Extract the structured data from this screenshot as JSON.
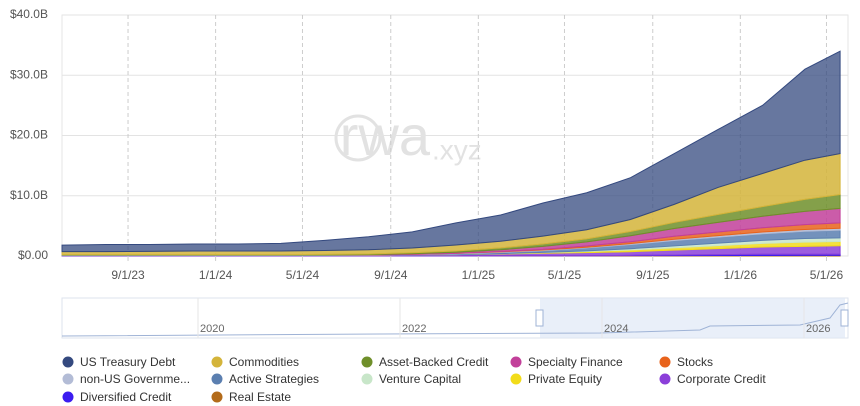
{
  "chart_data": {
    "type": "stacked-area",
    "watermark": [
      "rwa",
      ".xyz"
    ],
    "x": [
      "2023-06-01",
      "2023-08-01",
      "2023-10-01",
      "2023-12-01",
      "2024-02-01",
      "2024-04-01",
      "2024-06-01",
      "2024-08-01",
      "2024-10-01",
      "2024-12-01",
      "2025-02-01",
      "2025-04-01",
      "2025-06-01",
      "2025-08-01",
      "2025-10-01",
      "2025-12-01",
      "2026-02-01",
      "2026-04-01",
      "2026-05-20"
    ],
    "xlim": [
      "2023-06-01",
      "2026-05-31"
    ],
    "xticks": [
      {
        "value": "2023-09-01",
        "label": "9/1/23"
      },
      {
        "value": "2024-01-01",
        "label": "1/1/24"
      },
      {
        "value": "2024-05-01",
        "label": "5/1/24"
      },
      {
        "value": "2024-09-01",
        "label": "9/1/24"
      },
      {
        "value": "2025-01-01",
        "label": "1/1/25"
      },
      {
        "value": "2025-05-01",
        "label": "5/1/25"
      },
      {
        "value": "2025-09-01",
        "label": "9/1/25"
      },
      {
        "value": "2026-01-01",
        "label": "1/1/26"
      },
      {
        "value": "2026-05-01",
        "label": "5/1/26"
      }
    ],
    "ylim": [
      0,
      40
    ],
    "yticks": [
      {
        "value": 0,
        "label": "$0.00"
      },
      {
        "value": 10,
        "label": "$10.0B"
      },
      {
        "value": 20,
        "label": "$20.0B"
      },
      {
        "value": 30,
        "label": "$30.0B"
      },
      {
        "value": 40,
        "label": "$40.0B"
      }
    ],
    "grid": true,
    "series": [
      {
        "name": "US Treasury Debt",
        "color": "#34497f",
        "values": [
          1.08,
          1.18,
          1.13,
          1.18,
          1.18,
          1.28,
          1.68,
          2.17,
          2.67,
          3.67,
          4.36,
          5.5,
          6.15,
          6.94,
          8.43,
          9.62,
          11.31,
          15.1,
          17.0
        ]
      },
      {
        "name": "Commodities",
        "color": "#d4b43a",
        "values": [
          0.5,
          0.5,
          0.55,
          0.6,
          0.6,
          0.6,
          0.65,
          0.7,
          0.8,
          1.0,
          1.1,
          1.3,
          1.5,
          2.0,
          3.0,
          4.5,
          5.5,
          6.5,
          6.8
        ]
      },
      {
        "name": "Asset-Backed Credit",
        "color": "#6f8f2a",
        "values": [
          0.05,
          0.05,
          0.05,
          0.05,
          0.05,
          0.05,
          0.1,
          0.1,
          0.15,
          0.2,
          0.3,
          0.4,
          0.5,
          0.7,
          1.0,
          1.3,
          1.6,
          2.0,
          2.3
        ]
      },
      {
        "name": "Specialty Finance",
        "color": "#c2409a",
        "values": [
          0,
          0,
          0,
          0,
          0,
          0,
          0,
          0.05,
          0.1,
          0.2,
          0.3,
          0.5,
          0.7,
          1.0,
          1.3,
          1.6,
          1.9,
          2.2,
          2.4
        ]
      },
      {
        "name": "Stocks",
        "color": "#e8631c",
        "values": [
          0,
          0,
          0,
          0,
          0,
          0,
          0,
          0,
          0,
          0,
          0.05,
          0.1,
          0.2,
          0.3,
          0.5,
          0.6,
          0.7,
          0.8,
          0.9
        ]
      },
      {
        "name": "non-US Governme...",
        "color": "#b3bcd6",
        "values": [
          0.05,
          0.05,
          0.05,
          0.05,
          0.05,
          0.05,
          0.05,
          0.05,
          0.05,
          0.1,
          0.1,
          0.1,
          0.1,
          0.15,
          0.2,
          0.25,
          0.3,
          0.3,
          0.3
        ]
      },
      {
        "name": "Active Strategies",
        "color": "#5b7fb0",
        "values": [
          0,
          0,
          0,
          0,
          0,
          0,
          0,
          0,
          0.05,
          0.1,
          0.2,
          0.3,
          0.5,
          0.7,
          0.9,
          1.0,
          1.1,
          1.2,
          1.3
        ]
      },
      {
        "name": "Venture Capital",
        "color": "#c8e6c9",
        "values": [
          0,
          0,
          0,
          0,
          0,
          0,
          0,
          0,
          0,
          0,
          0,
          0.05,
          0.1,
          0.2,
          0.3,
          0.4,
          0.5,
          0.6,
          0.6
        ]
      },
      {
        "name": "Private Equity",
        "color": "#f2dc1a",
        "values": [
          0,
          0,
          0,
          0,
          0,
          0,
          0,
          0,
          0,
          0,
          0.05,
          0.1,
          0.2,
          0.3,
          0.4,
          0.5,
          0.6,
          0.7,
          0.7
        ]
      },
      {
        "name": "Corporate Credit",
        "color": "#8b3fd9",
        "values": [
          0.1,
          0.1,
          0.1,
          0.1,
          0.1,
          0.1,
          0.1,
          0.1,
          0.15,
          0.2,
          0.3,
          0.4,
          0.5,
          0.6,
          0.8,
          1.0,
          1.2,
          1.3,
          1.4
        ]
      },
      {
        "name": "Diversified Credit",
        "color": "#3b1cf0",
        "values": [
          0,
          0,
          0,
          0,
          0,
          0,
          0,
          0,
          0,
          0,
          0,
          0,
          0,
          0.05,
          0.1,
          0.15,
          0.2,
          0.2,
          0.2
        ]
      },
      {
        "name": "Real Estate",
        "color": "#b36b1a",
        "values": [
          0.02,
          0.02,
          0.02,
          0.02,
          0.02,
          0.02,
          0.02,
          0.03,
          0.03,
          0.03,
          0.04,
          0.05,
          0.05,
          0.06,
          0.07,
          0.08,
          0.09,
          0.1,
          0.1
        ]
      }
    ],
    "navigator": {
      "labels": [
        "2020",
        "2022",
        "2024",
        "2026"
      ]
    }
  }
}
